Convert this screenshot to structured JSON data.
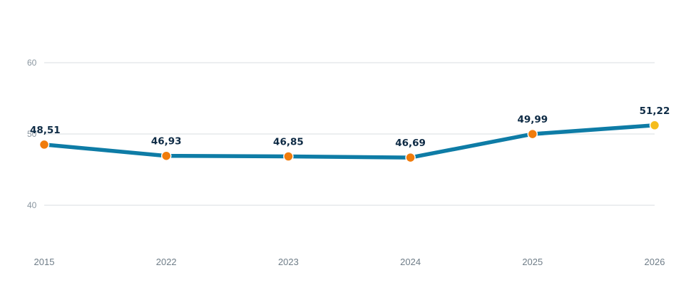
{
  "chart_data": {
    "type": "line",
    "categories": [
      "2015",
      "2022",
      "2023",
      "2024",
      "2025",
      "2026"
    ],
    "values": [
      48.51,
      46.93,
      46.85,
      46.69,
      49.99,
      51.22
    ],
    "value_labels": [
      "48,51",
      "46,93",
      "46,85",
      "46,69",
      "49,99",
      "51,22"
    ],
    "ylim": [
      33,
      63
    ],
    "yticks": [
      40,
      50,
      60
    ],
    "ytick_labels": [
      "40",
      "50",
      "60"
    ],
    "grid": true,
    "title": "",
    "xlabel": "",
    "ylabel": "",
    "colors": {
      "line": "#0e7ca6",
      "point": "#f07c0c",
      "highlight_point": "#f5bc1c"
    },
    "highlight_index": 5
  }
}
